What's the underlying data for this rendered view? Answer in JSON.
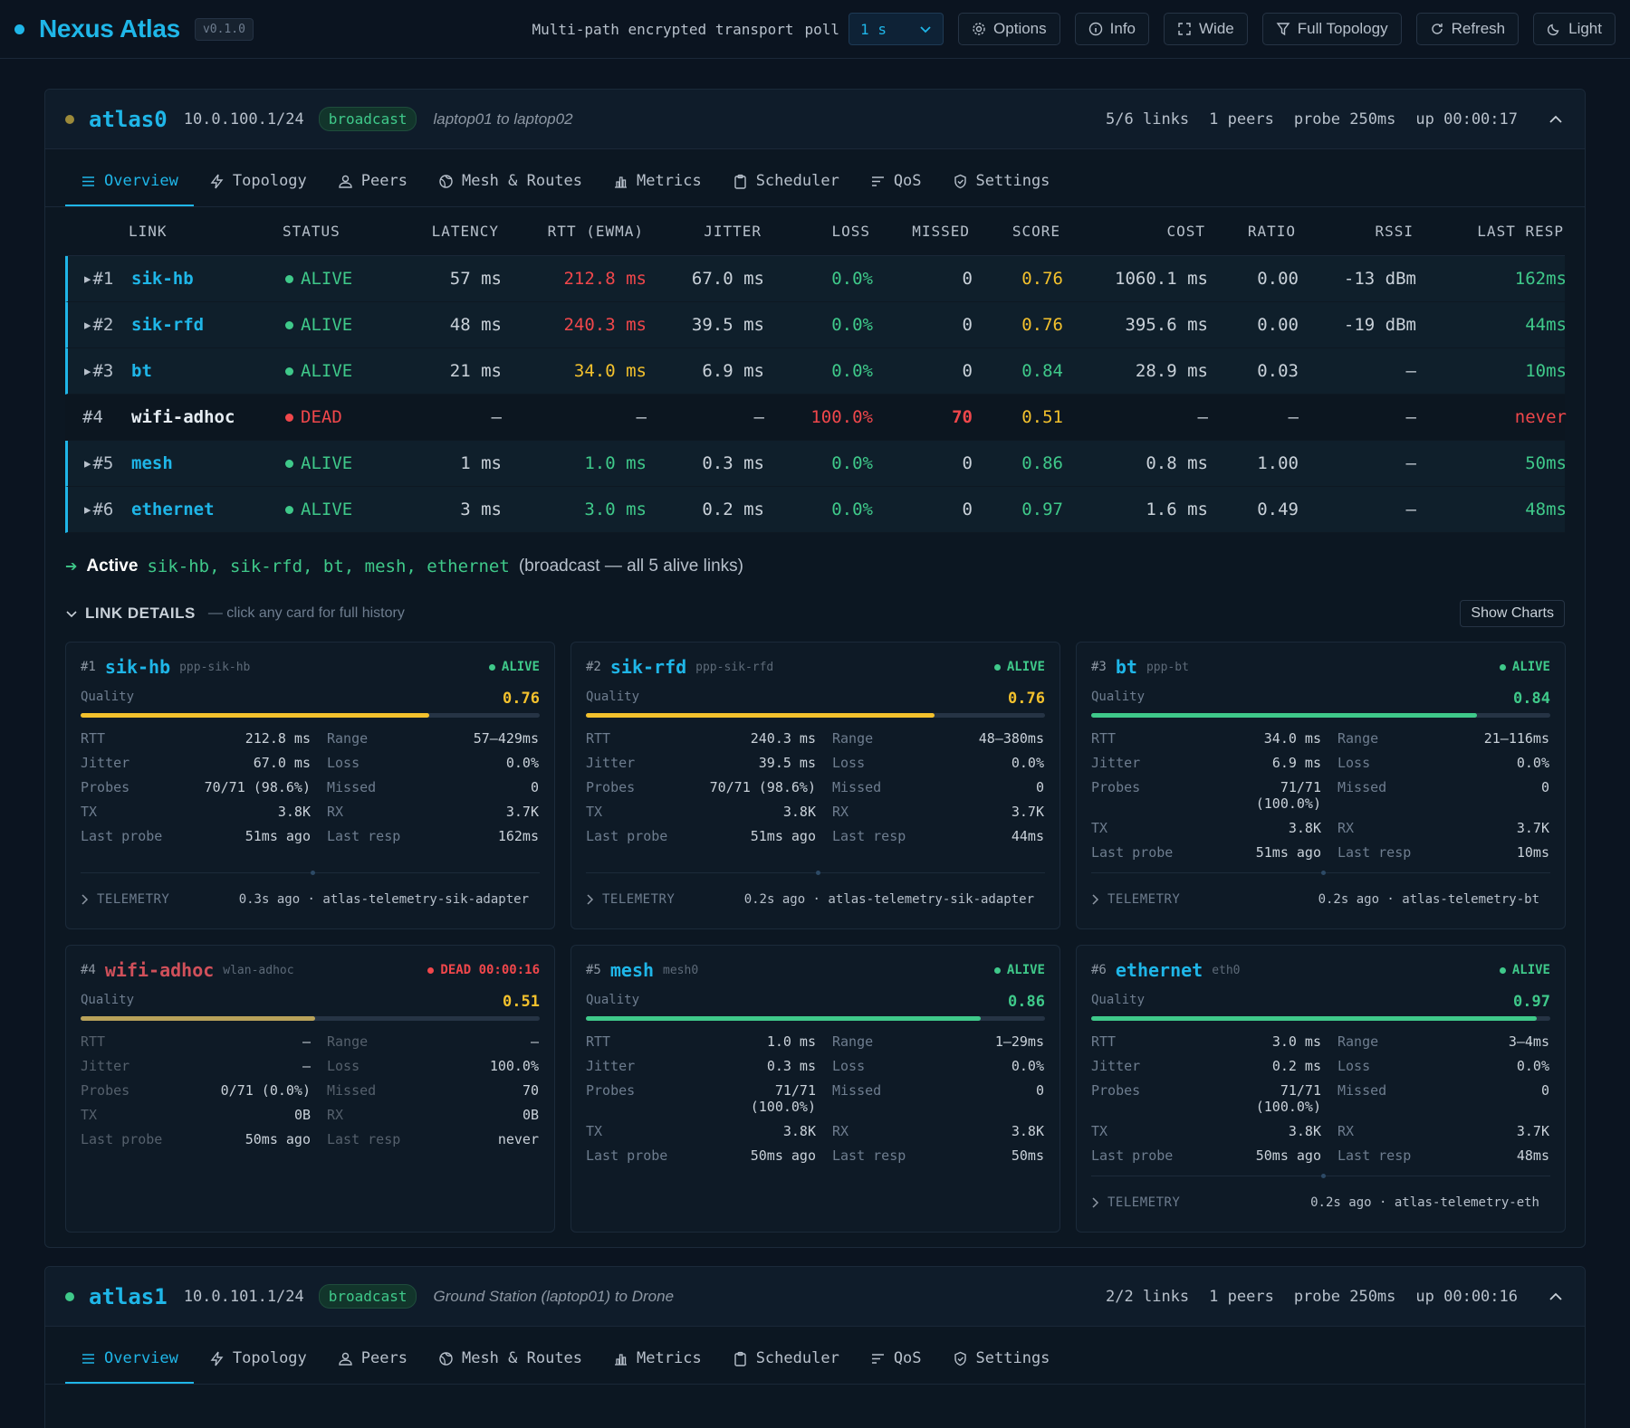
{
  "app": {
    "title": "Nexus Atlas",
    "version": "v0.1.0",
    "tagline": "Multi-path encrypted transport",
    "poll_label": "poll",
    "poll_value": "1 s",
    "buttons": {
      "options": "Options",
      "info": "Info",
      "wide": "Wide",
      "full_topology": "Full Topology",
      "refresh": "Refresh",
      "light": "Light"
    }
  },
  "colors": {
    "accent": "#1fb6e8",
    "alive": "#3fc98a",
    "dead": "#f0474b",
    "warn": "#f3c12d",
    "background": "#0b1420"
  },
  "tabs": [
    "Overview",
    "Topology",
    "Peers",
    "Mesh & Routes",
    "Metrics",
    "Scheduler",
    "QoS",
    "Settings"
  ],
  "interfaces": [
    {
      "name": "atlas0",
      "ip": "10.0.100.1/24",
      "mode": "broadcast",
      "description": "laptop01 to laptop02",
      "links": "5/6 links",
      "peers": "1 peers",
      "probe": "probe 250ms",
      "uptime": "up 00:00:17",
      "status_color": "#9c8a3a"
    },
    {
      "name": "atlas1",
      "ip": "10.0.101.1/24",
      "mode": "broadcast",
      "description": "Ground Station (laptop01) to Drone",
      "links": "2/2 links",
      "peers": "1 peers",
      "probe": "probe 250ms",
      "uptime": "up 00:00:16",
      "status_color": "#3fc98a"
    }
  ],
  "table": {
    "headers": [
      "LINK",
      "STATUS",
      "LATENCY",
      "RTT (EWMA)",
      "JITTER",
      "LOSS",
      "MISSED",
      "SCORE",
      "COST",
      "RATIO",
      "RSSI",
      "LAST RESP"
    ],
    "rows": [
      {
        "num": "▸#1",
        "link": "sik-hb",
        "status": "ALIVE",
        "latency": "57 ms",
        "rtt": "212.8 ms",
        "jitter": "67.0 ms",
        "loss": "0.0%",
        "missed": "0",
        "score": "0.76",
        "cost": "1060.1 ms",
        "ratio": "0.00",
        "rssi": "-13 dBm",
        "last_resp": "162ms"
      },
      {
        "num": "▸#2",
        "link": "sik-rfd",
        "status": "ALIVE",
        "latency": "48 ms",
        "rtt": "240.3 ms",
        "jitter": "39.5 ms",
        "loss": "0.0%",
        "missed": "0",
        "score": "0.76",
        "cost": "395.6 ms",
        "ratio": "0.00",
        "rssi": "-19 dBm",
        "last_resp": "44ms"
      },
      {
        "num": "▸#3",
        "link": "bt",
        "status": "ALIVE",
        "latency": "21 ms",
        "rtt": "34.0 ms",
        "jitter": "6.9 ms",
        "loss": "0.0%",
        "missed": "0",
        "score": "0.84",
        "cost": "28.9 ms",
        "ratio": "0.03",
        "rssi": "—",
        "last_resp": "10ms"
      },
      {
        "num": "#4",
        "link": "wifi-adhoc",
        "status": "DEAD",
        "latency": "—",
        "rtt": "—",
        "jitter": "—",
        "loss": "100.0%",
        "missed": "70",
        "score": "0.51",
        "cost": "—",
        "ratio": "—",
        "rssi": "—",
        "last_resp": "never"
      },
      {
        "num": "▸#5",
        "link": "mesh",
        "status": "ALIVE",
        "latency": "1 ms",
        "rtt": "1.0 ms",
        "jitter": "0.3 ms",
        "loss": "0.0%",
        "missed": "0",
        "score": "0.86",
        "cost": "0.8 ms",
        "ratio": "1.00",
        "rssi": "—",
        "last_resp": "50ms"
      },
      {
        "num": "▸#6",
        "link": "ethernet",
        "status": "ALIVE",
        "latency": "3 ms",
        "rtt": "3.0 ms",
        "jitter": "0.2 ms",
        "loss": "0.0%",
        "missed": "0",
        "score": "0.97",
        "cost": "1.6 ms",
        "ratio": "0.49",
        "rssi": "—",
        "last_resp": "48ms"
      }
    ]
  },
  "active": {
    "label": "Active",
    "names": "sik-hb, sik-rfd, bt, mesh, ethernet",
    "note": "(broadcast — all 5 alive links)"
  },
  "details": {
    "title": "LINK DETAILS",
    "hint": "— click any card for full history",
    "show_charts": "Show Charts"
  },
  "cards": [
    {
      "num": "#1",
      "name": "sik-hb",
      "device": "ppp-sik-hb",
      "status": "ALIVE",
      "quality_label": "Quality",
      "quality": "0.76",
      "quality_fraction": 0.76,
      "rtt": "212.8 ms",
      "range": "57–429ms",
      "jitter": "67.0 ms",
      "loss": "0.0%",
      "probes": "70/71 (98.6%)",
      "missed": "0",
      "tx": "3.8K",
      "rx": "3.7K",
      "last_probe": "51ms ago",
      "last_resp": "162ms",
      "telemetry": "TELEMETRY",
      "telemetry_src": "0.3s ago · atlas-telemetry-sik-adapter"
    },
    {
      "num": "#2",
      "name": "sik-rfd",
      "device": "ppp-sik-rfd",
      "status": "ALIVE",
      "quality_label": "Quality",
      "quality": "0.76",
      "quality_fraction": 0.76,
      "rtt": "240.3 ms",
      "range": "48–380ms",
      "jitter": "39.5 ms",
      "loss": "0.0%",
      "probes": "70/71 (98.6%)",
      "missed": "0",
      "tx": "3.8K",
      "rx": "3.7K",
      "last_probe": "51ms ago",
      "last_resp": "44ms",
      "telemetry": "TELEMETRY",
      "telemetry_src": "0.2s ago · atlas-telemetry-sik-adapter"
    },
    {
      "num": "#3",
      "name": "bt",
      "device": "ppp-bt",
      "status": "ALIVE",
      "quality_label": "Quality",
      "quality": "0.84",
      "quality_fraction": 0.84,
      "rtt": "34.0 ms",
      "range": "21–116ms",
      "jitter": "6.9 ms",
      "loss": "0.0%",
      "probes": "71/71 (100.0%)",
      "missed": "0",
      "tx": "3.8K",
      "rx": "3.7K",
      "last_probe": "51ms ago",
      "last_resp": "10ms",
      "telemetry": "TELEMETRY",
      "telemetry_src": "0.2s ago · atlas-telemetry-bt"
    },
    {
      "num": "#4",
      "name": "wifi-adhoc",
      "device": "wlan-adhoc",
      "status": "DEAD 00:00:16",
      "quality_label": "Quality",
      "quality": "0.51",
      "quality_fraction": 0.51,
      "rtt": "—",
      "range": "—",
      "jitter": "—",
      "loss": "100.0%",
      "probes": "0/71 (0.0%)",
      "missed": "70",
      "tx": "0B",
      "rx": "0B",
      "last_probe": "50ms ago",
      "last_resp": "never",
      "telemetry": "",
      "telemetry_src": ""
    },
    {
      "num": "#5",
      "name": "mesh",
      "device": "mesh0",
      "status": "ALIVE",
      "quality_label": "Quality",
      "quality": "0.86",
      "quality_fraction": 0.86,
      "rtt": "1.0 ms",
      "range": "1–29ms",
      "jitter": "0.3 ms",
      "loss": "0.0%",
      "probes": "71/71 (100.0%)",
      "missed": "0",
      "tx": "3.8K",
      "rx": "3.8K",
      "last_probe": "50ms ago",
      "last_resp": "50ms",
      "telemetry": "",
      "telemetry_src": ""
    },
    {
      "num": "#6",
      "name": "ethernet",
      "device": "eth0",
      "status": "ALIVE",
      "quality_label": "Quality",
      "quality": "0.97",
      "quality_fraction": 0.97,
      "rtt": "3.0 ms",
      "range": "3–4ms",
      "jitter": "0.2 ms",
      "loss": "0.0%",
      "probes": "71/71 (100.0%)",
      "missed": "0",
      "tx": "3.8K",
      "rx": "3.7K",
      "last_probe": "50ms ago",
      "last_resp": "48ms",
      "telemetry": "TELEMETRY",
      "telemetry_src": "0.2s ago · atlas-telemetry-eth"
    }
  ],
  "kv_labels": {
    "rtt": "RTT",
    "range": "Range",
    "jitter": "Jitter",
    "loss": "Loss",
    "probes": "Probes",
    "missed": "Missed",
    "tx": "TX",
    "rx": "RX",
    "last_probe": "Last probe",
    "last_resp": "Last resp"
  }
}
